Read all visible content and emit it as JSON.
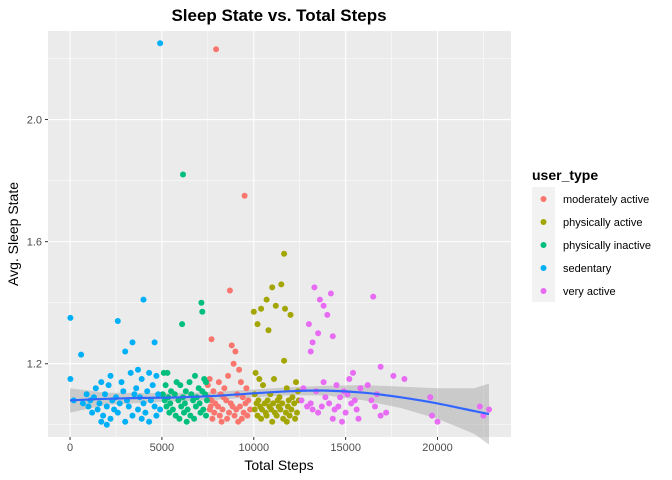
{
  "chart_data": {
    "type": "scatter",
    "title": "Sleep State vs. Total Steps",
    "xlabel": "Total Steps",
    "ylabel": "Avg. Sleep State",
    "xlim": [
      -1200,
      24000
    ],
    "ylim": [
      0.96,
      2.29
    ],
    "x_ticks": [
      0,
      5000,
      10000,
      15000,
      20000
    ],
    "x_tick_labels": [
      "0",
      "5000",
      "10000",
      "15000",
      "20000"
    ],
    "y_ticks": [
      1.2,
      1.6,
      2.0
    ],
    "y_tick_labels": [
      "1.2",
      "1.6",
      "2.0"
    ],
    "grid": true,
    "background": "#ebebeb",
    "legend": {
      "title": "user_type",
      "placement": "right"
    },
    "series": [
      {
        "name": "moderately active",
        "color": "#f8766d",
        "points": [
          [
            7950,
            2.23
          ],
          [
            9500,
            1.75
          ],
          [
            8700,
            1.44
          ],
          [
            7700,
            1.28
          ],
          [
            8800,
            1.26
          ],
          [
            9000,
            1.24
          ],
          [
            8900,
            1.2
          ],
          [
            9200,
            1.18
          ],
          [
            8600,
            1.16
          ],
          [
            7600,
            1.15
          ],
          [
            8100,
            1.14
          ],
          [
            9300,
            1.14
          ],
          [
            7500,
            1.13
          ],
          [
            8400,
            1.12
          ],
          [
            9600,
            1.12
          ],
          [
            7800,
            1.11
          ],
          [
            8200,
            1.1
          ],
          [
            9100,
            1.1
          ],
          [
            7550,
            1.09
          ],
          [
            8350,
            1.09
          ],
          [
            9400,
            1.09
          ],
          [
            7700,
            1.08
          ],
          [
            8500,
            1.08
          ],
          [
            9700,
            1.08
          ],
          [
            7900,
            1.07
          ],
          [
            8750,
            1.07
          ],
          [
            9550,
            1.07
          ],
          [
            7650,
            1.06
          ],
          [
            8050,
            1.06
          ],
          [
            8850,
            1.06
          ],
          [
            9250,
            1.06
          ],
          [
            7600,
            1.05
          ],
          [
            8300,
            1.05
          ],
          [
            9050,
            1.05
          ],
          [
            9800,
            1.05
          ],
          [
            7850,
            1.04
          ],
          [
            8650,
            1.04
          ],
          [
            9450,
            1.04
          ],
          [
            8150,
            1.03
          ],
          [
            8950,
            1.03
          ],
          [
            9650,
            1.03
          ],
          [
            7750,
            1.02
          ],
          [
            8550,
            1.02
          ],
          [
            9350,
            1.02
          ],
          [
            8250,
            1.01
          ],
          [
            9150,
            1.01
          ]
        ]
      },
      {
        "name": "physically active",
        "color": "#a3a500",
        "points": [
          [
            11650,
            1.56
          ],
          [
            11500,
            1.46
          ],
          [
            11000,
            1.45
          ],
          [
            10700,
            1.41
          ],
          [
            11200,
            1.39
          ],
          [
            10400,
            1.38
          ],
          [
            11700,
            1.38
          ],
          [
            10000,
            1.37
          ],
          [
            12000,
            1.36
          ],
          [
            10200,
            1.33
          ],
          [
            10800,
            1.31
          ],
          [
            11650,
            1.21
          ],
          [
            10100,
            1.17
          ],
          [
            10300,
            1.15
          ],
          [
            11100,
            1.15
          ],
          [
            12300,
            1.14
          ],
          [
            10500,
            1.13
          ],
          [
            11800,
            1.12
          ],
          [
            12400,
            1.11
          ],
          [
            10050,
            1.1
          ],
          [
            10900,
            1.1
          ],
          [
            11400,
            1.09
          ],
          [
            12100,
            1.09
          ],
          [
            10250,
            1.08
          ],
          [
            10750,
            1.08
          ],
          [
            11300,
            1.08
          ],
          [
            11900,
            1.08
          ],
          [
            12450,
            1.08
          ],
          [
            10150,
            1.07
          ],
          [
            10600,
            1.07
          ],
          [
            11050,
            1.07
          ],
          [
            11550,
            1.07
          ],
          [
            12200,
            1.07
          ],
          [
            10350,
            1.06
          ],
          [
            10850,
            1.06
          ],
          [
            11350,
            1.06
          ],
          [
            11850,
            1.06
          ],
          [
            10050,
            1.05
          ],
          [
            10450,
            1.05
          ],
          [
            10950,
            1.05
          ],
          [
            11450,
            1.05
          ],
          [
            12050,
            1.05
          ],
          [
            10650,
            1.04
          ],
          [
            11150,
            1.04
          ],
          [
            11750,
            1.04
          ],
          [
            12350,
            1.04
          ],
          [
            10200,
            1.03
          ],
          [
            10700,
            1.03
          ],
          [
            11250,
            1.03
          ],
          [
            11950,
            1.03
          ],
          [
            10400,
            1.02
          ],
          [
            11600,
            1.02
          ],
          [
            12250,
            1.02
          ],
          [
            11000,
            1.01
          ],
          [
            11800,
            1.01
          ]
        ]
      },
      {
        "name": "physically inactive",
        "color": "#00bf7d",
        "points": [
          [
            6150,
            1.82
          ],
          [
            7150,
            1.4
          ],
          [
            7200,
            1.37
          ],
          [
            6100,
            1.33
          ],
          [
            5100,
            1.17
          ],
          [
            5300,
            1.17
          ],
          [
            6800,
            1.16
          ],
          [
            7300,
            1.15
          ],
          [
            5800,
            1.14
          ],
          [
            6500,
            1.14
          ],
          [
            7400,
            1.14
          ],
          [
            5200,
            1.13
          ],
          [
            6000,
            1.13
          ],
          [
            7000,
            1.12
          ],
          [
            5500,
            1.11
          ],
          [
            6300,
            1.11
          ],
          [
            7200,
            1.11
          ],
          [
            5050,
            1.1
          ],
          [
            5700,
            1.1
          ],
          [
            6600,
            1.1
          ],
          [
            7350,
            1.1
          ],
          [
            5350,
            1.09
          ],
          [
            6150,
            1.09
          ],
          [
            6900,
            1.09
          ],
          [
            5150,
            1.08
          ],
          [
            5900,
            1.08
          ],
          [
            6700,
            1.08
          ],
          [
            7450,
            1.08
          ],
          [
            5450,
            1.07
          ],
          [
            6250,
            1.07
          ],
          [
            7050,
            1.07
          ],
          [
            5250,
            1.06
          ],
          [
            6050,
            1.06
          ],
          [
            6850,
            1.06
          ],
          [
            5600,
            1.05
          ],
          [
            6400,
            1.05
          ],
          [
            7250,
            1.05
          ],
          [
            5400,
            1.04
          ],
          [
            6200,
            1.04
          ],
          [
            7100,
            1.04
          ],
          [
            5750,
            1.03
          ],
          [
            6550,
            1.03
          ],
          [
            7400,
            1.03
          ],
          [
            5950,
            1.02
          ],
          [
            6750,
            1.02
          ],
          [
            6350,
            1.01
          ]
        ]
      },
      {
        "name": "sedentary",
        "color": "#00b0f6",
        "points": [
          [
            4900,
            2.25
          ],
          [
            4000,
            1.41
          ],
          [
            20,
            1.35
          ],
          [
            2600,
            1.34
          ],
          [
            3400,
            1.27
          ],
          [
            4600,
            1.27
          ],
          [
            3000,
            1.24
          ],
          [
            600,
            1.23
          ],
          [
            3700,
            1.18
          ],
          [
            4300,
            1.17
          ],
          [
            3300,
            1.17
          ],
          [
            2200,
            1.16
          ],
          [
            4700,
            1.16
          ],
          [
            3900,
            1.15
          ],
          [
            20,
            1.15
          ],
          [
            1700,
            1.14
          ],
          [
            2800,
            1.14
          ],
          [
            2100,
            1.13
          ],
          [
            4500,
            1.13
          ],
          [
            1400,
            1.12
          ],
          [
            3600,
            1.12
          ],
          [
            2900,
            1.11
          ],
          [
            4200,
            1.11
          ],
          [
            900,
            1.1
          ],
          [
            1900,
            1.1
          ],
          [
            3500,
            1.1
          ],
          [
            4800,
            1.1
          ],
          [
            1300,
            1.09
          ],
          [
            2500,
            1.09
          ],
          [
            3800,
            1.09
          ],
          [
            200,
            1.08
          ],
          [
            1100,
            1.08
          ],
          [
            2300,
            1.08
          ],
          [
            3100,
            1.08
          ],
          [
            4400,
            1.08
          ],
          [
            700,
            1.07
          ],
          [
            1600,
            1.07
          ],
          [
            2700,
            1.07
          ],
          [
            4000,
            1.07
          ],
          [
            1000,
            1.06
          ],
          [
            2000,
            1.06
          ],
          [
            3200,
            1.06
          ],
          [
            4600,
            1.06
          ],
          [
            1500,
            1.05
          ],
          [
            2400,
            1.05
          ],
          [
            3700,
            1.05
          ],
          [
            4900,
            1.05
          ],
          [
            1200,
            1.04
          ],
          [
            2600,
            1.04
          ],
          [
            4100,
            1.04
          ],
          [
            1800,
            1.03
          ],
          [
            3400,
            1.03
          ],
          [
            4700,
            1.03
          ],
          [
            2200,
            1.02
          ],
          [
            3900,
            1.02
          ],
          [
            1700,
            1.01
          ],
          [
            3000,
            1.01
          ],
          [
            4300,
            1.01
          ],
          [
            2000,
            1.0
          ]
        ]
      },
      {
        "name": "very active",
        "color": "#e76bf3",
        "points": [
          [
            13300,
            1.45
          ],
          [
            16500,
            1.42
          ],
          [
            14200,
            1.43
          ],
          [
            13600,
            1.41
          ],
          [
            13800,
            1.39
          ],
          [
            14000,
            1.36
          ],
          [
            13000,
            1.33
          ],
          [
            13500,
            1.3
          ],
          [
            14300,
            1.29
          ],
          [
            13200,
            1.27
          ],
          [
            13100,
            1.24
          ],
          [
            16900,
            1.19
          ],
          [
            15400,
            1.17
          ],
          [
            17600,
            1.16
          ],
          [
            18200,
            1.15
          ],
          [
            15200,
            1.15
          ],
          [
            13800,
            1.14
          ],
          [
            16200,
            1.13
          ],
          [
            14500,
            1.13
          ],
          [
            15800,
            1.12
          ],
          [
            12700,
            1.12
          ],
          [
            13400,
            1.11
          ],
          [
            14900,
            1.11
          ],
          [
            16700,
            1.1
          ],
          [
            15100,
            1.1
          ],
          [
            19600,
            1.09
          ],
          [
            13900,
            1.09
          ],
          [
            14700,
            1.09
          ],
          [
            12600,
            1.08
          ],
          [
            15500,
            1.08
          ],
          [
            16400,
            1.08
          ],
          [
            13100,
            1.07
          ],
          [
            14100,
            1.07
          ],
          [
            15300,
            1.07
          ],
          [
            16600,
            1.06
          ],
          [
            12900,
            1.06
          ],
          [
            13700,
            1.06
          ],
          [
            14600,
            1.06
          ],
          [
            22300,
            1.06
          ],
          [
            13200,
            1.05
          ],
          [
            14400,
            1.05
          ],
          [
            15600,
            1.05
          ],
          [
            22800,
            1.05
          ],
          [
            17200,
            1.04
          ],
          [
            15000,
            1.04
          ],
          [
            13500,
            1.04
          ],
          [
            16900,
            1.03
          ],
          [
            19700,
            1.03
          ],
          [
            22500,
            1.03
          ],
          [
            14300,
            1.02
          ],
          [
            15700,
            1.02
          ],
          [
            20000,
            1.01
          ],
          [
            14800,
            1.01
          ]
        ]
      }
    ],
    "smooth": {
      "color": "#3366ff",
      "band_color": "#999999",
      "x": [
        0,
        2000,
        4000,
        6000,
        8000,
        10000,
        12000,
        14000,
        16000,
        18000,
        20000,
        22000,
        22800
      ],
      "y": [
        1.08,
        1.085,
        1.088,
        1.09,
        1.095,
        1.103,
        1.11,
        1.112,
        1.105,
        1.09,
        1.07,
        1.045,
        1.035
      ],
      "lower": [
        1.04,
        1.065,
        1.072,
        1.077,
        1.082,
        1.09,
        1.097,
        1.096,
        1.08,
        1.055,
        1.02,
        0.97,
        0.935
      ],
      "upper": [
        1.12,
        1.105,
        1.104,
        1.103,
        1.108,
        1.116,
        1.123,
        1.128,
        1.13,
        1.125,
        1.12,
        1.12,
        1.135
      ]
    }
  }
}
